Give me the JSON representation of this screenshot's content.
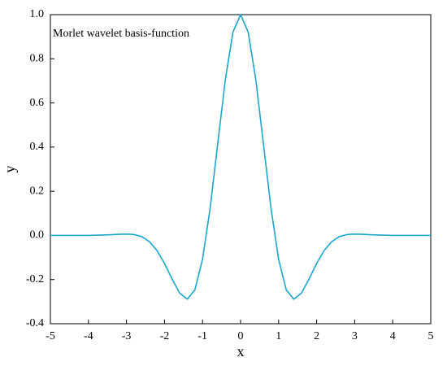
{
  "chart_data": {
    "type": "line",
    "annotation": "Morlet wavelet basis-function",
    "x_label": "x",
    "y_label": "y",
    "x": [
      -5,
      -4.8,
      -4.6,
      -4.4,
      -4.2,
      -4,
      -3.8,
      -3.6,
      -3.4,
      -3.2,
      -3,
      -2.8,
      -2.6,
      -2.4,
      -2.2,
      -2,
      -1.8,
      -1.6,
      -1.4,
      -1.2,
      -1,
      -0.8,
      -0.6,
      -0.4,
      -0.2,
      0,
      0.2,
      0.4,
      0.6,
      0.8,
      1,
      1.2,
      1.4,
      1.6,
      1.8,
      2,
      2.2,
      2.4,
      2.6,
      2.8,
      3,
      3.2,
      3.4,
      3.6,
      3.8,
      4,
      4.2,
      4.4,
      4.6,
      4.8,
      5
    ],
    "series": [
      {
        "color": "#1aa7c9",
        "values": [
          0,
          0,
          0,
          0,
          0,
          0,
          0.001,
          0.002,
          0.003,
          0.005,
          0.006,
          0.004,
          -0.005,
          -0.028,
          -0.068,
          -0.127,
          -0.198,
          -0.262,
          -0.289,
          -0.246,
          -0.108,
          0.123,
          0.416,
          0.706,
          0.921,
          1.0,
          0.921,
          0.706,
          0.416,
          0.123,
          -0.108,
          -0.246,
          -0.289,
          -0.262,
          -0.198,
          -0.127,
          -0.068,
          -0.028,
          -0.005,
          0.004,
          0.006,
          0.005,
          0.003,
          0.002,
          0.001,
          0,
          0,
          0,
          0,
          0,
          0
        ]
      }
    ],
    "xlim": [
      -5,
      5
    ],
    "xticks": [
      -5,
      -4,
      -3,
      -2,
      -1,
      0,
      1,
      2,
      3,
      4,
      5
    ],
    "ylim": [
      -0.4,
      1.0
    ],
    "yticks": [
      -0.4,
      -0.2,
      {
        "value": 0,
        "label": "0.0"
      },
      0.2,
      0.4,
      0.6,
      0.8,
      {
        "value": 1.0,
        "label": "1.0"
      }
    ],
    "grid": false
  }
}
